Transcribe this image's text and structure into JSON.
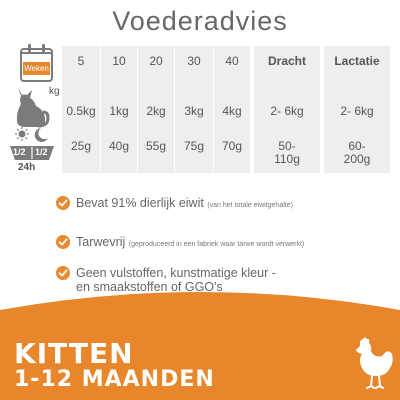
{
  "title": "Voederadvies",
  "row_labels": {
    "calendar_label": "Weken",
    "weight_unit": "kg",
    "portion_fraction_left": "1/2",
    "portion_fraction_right": "1/2",
    "period": "24h"
  },
  "columns": [
    {
      "head": "5",
      "weight": "0.5kg",
      "amount": "25g"
    },
    {
      "head": "10",
      "weight": "1kg",
      "amount": "40g"
    },
    {
      "head": "20",
      "weight": "2kg",
      "amount": "55g"
    },
    {
      "head": "30",
      "weight": "3kg",
      "amount": "75g"
    },
    {
      "head": "40",
      "weight": "4kg",
      "amount": "70g"
    },
    {
      "head": "Dracht",
      "weight": "2- 6kg",
      "amount": "50-\n110g"
    },
    {
      "head": "Lactatie",
      "weight": "2- 6kg",
      "amount": "60-\n200g"
    }
  ],
  "benefits": [
    {
      "text": "Bevat 91% dierlijk eiwit",
      "note": "(van het totale eiwitgehalte)"
    },
    {
      "text": "Tarwevrij",
      "note": "(geproduceerd in een fabriek waar tarwe wordt verwerkt)"
    },
    {
      "text": "Geen vulstoffen, kunstmatige kleur -",
      "text2": "en smaakstoffen of GGO's",
      "note": ""
    }
  ],
  "footer": {
    "line1": "KITTEN",
    "line2": "1-12 MAANDEN"
  },
  "colors": {
    "accent": "#e7862b",
    "cell_bg": "#efeeee",
    "text": "#555555"
  },
  "icons": [
    "calendar-icon",
    "cat-icon",
    "sun-icon",
    "moon-icon",
    "bowl-icon",
    "check-icon",
    "chicken-icon"
  ]
}
